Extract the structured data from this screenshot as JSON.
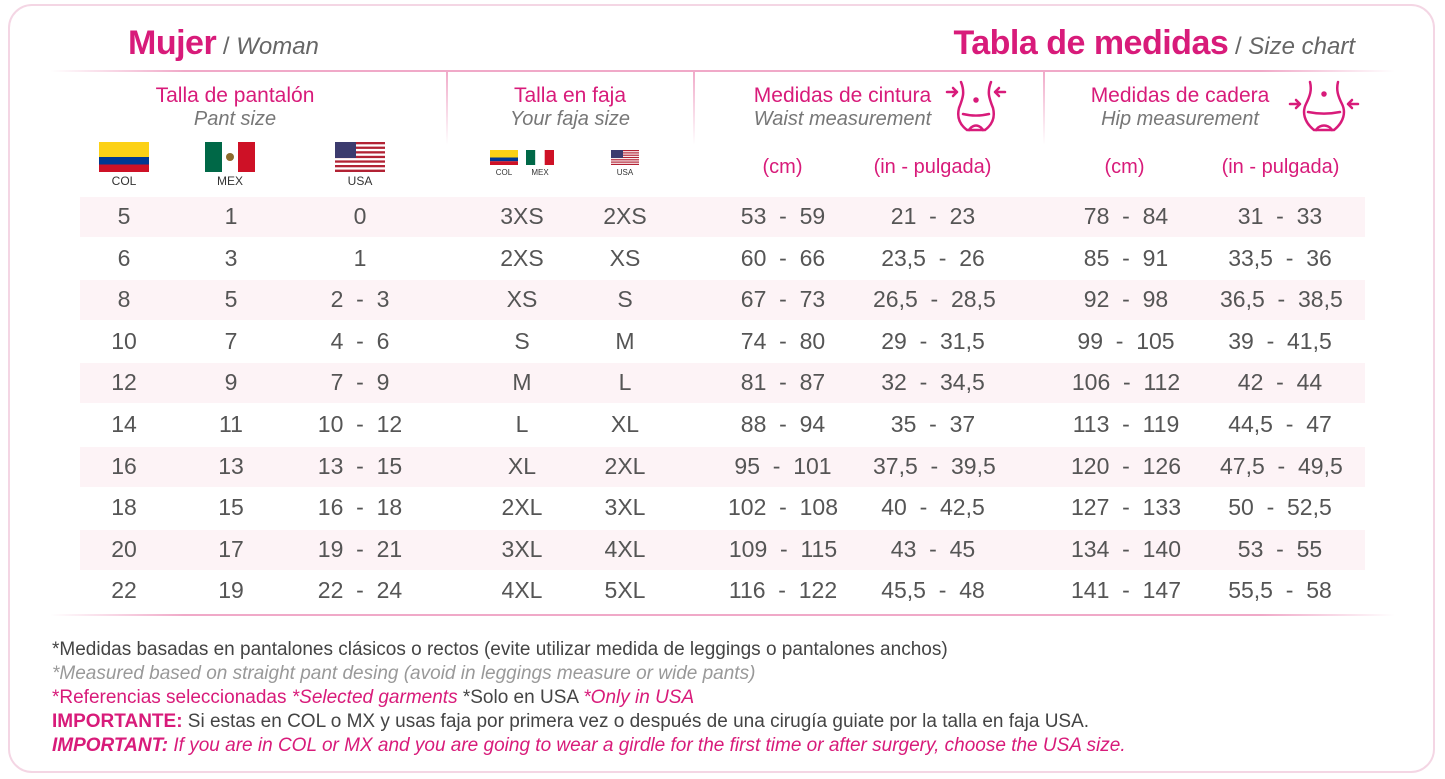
{
  "header": {
    "left_main": "Mujer",
    "left_sub": "Woman",
    "right_main": "Tabla de medidas",
    "right_sub": "Size chart",
    "slash": "/"
  },
  "groups": {
    "pant": {
      "es": "Talla de pantalón",
      "en": "Pant size"
    },
    "faja": {
      "es": "Talla en faja",
      "en": "Your faja size"
    },
    "waist": {
      "es": "Medidas de cintura",
      "en": "Waist measurement"
    },
    "hip": {
      "es": "Medidas de cadera",
      "en": "Hip measurement"
    }
  },
  "flags": {
    "col": "COL",
    "mex": "MEX",
    "usa": "USA"
  },
  "units": {
    "cm": "(cm)",
    "in": "(in - pulgada)"
  },
  "rows": [
    [
      "5",
      "1",
      "0",
      "3XS",
      "2XS",
      "53  -  59",
      "21  -  23",
      "78  -  84",
      "31  -  33"
    ],
    [
      "6",
      "3",
      "1",
      "2XS",
      "XS",
      "60  -  66",
      "23,5  -  26",
      "85  -  91",
      "33,5  -  36"
    ],
    [
      "8",
      "5",
      "2  -  3",
      "XS",
      "S",
      "67  -  73",
      "26,5  -  28,5",
      "92  -  98",
      "36,5  -  38,5"
    ],
    [
      "10",
      "7",
      "4  -  6",
      "S",
      "M",
      "74  -  80",
      "29  -  31,5",
      "99  -  105",
      "39  -  41,5"
    ],
    [
      "12",
      "9",
      "7  -  9",
      "M",
      "L",
      "81  -  87",
      "32  -  34,5",
      "106  -  112",
      "42  -  44"
    ],
    [
      "14",
      "11",
      "10  -  12",
      "L",
      "XL",
      "88  -  94",
      "35  -  37",
      "113  -  119",
      "44,5  -  47"
    ],
    [
      "16",
      "13",
      "13  -  15",
      "XL",
      "2XL",
      "95  -  101",
      "37,5  -  39,5",
      "120  -  126",
      "47,5  -  49,5"
    ],
    [
      "18",
      "15",
      "16  -  18",
      "2XL",
      "3XL",
      "102  -  108",
      "40  -  42,5",
      "127  -  133",
      "50  -  52,5"
    ],
    [
      "20",
      "17",
      "19  -  21",
      "3XL",
      "4XL",
      "109  -  115",
      "43  -  45",
      "134  -  140",
      "53  -  55"
    ],
    [
      "22",
      "19",
      "22  -  24",
      "4XL",
      "5XL",
      "116  -  122",
      "45,5  -  48",
      "141  -  147",
      "55,5  -  58"
    ]
  ],
  "notes": {
    "line1": "*Medidas basadas en pantalones clásicos o rectos (evite utilizar medida de leggings o pantalones anchos)",
    "line2": "*Measured based on straight pant desing (avoid in leggings measure or wide pants)",
    "line3_a": "*Referencias seleccionadas",
    "line3_b": "*Selected garments",
    "line3_c": "*Solo en USA",
    "line3_d": "*Only in USA",
    "line4_label": "IMPORTANTE:",
    "line4_text": " Si estas en COL o MX y usas faja por primera vez o después de una cirugía guiate por la talla en faja USA.",
    "line5_label": "IMPORTANT:",
    "line5_text": " If you are in COL or MX and you are going to wear a girdle for the first time or after surgery, choose the USA size."
  },
  "colors": {
    "accent": "#d81b7a",
    "row_shade": "#fdf3f6"
  }
}
